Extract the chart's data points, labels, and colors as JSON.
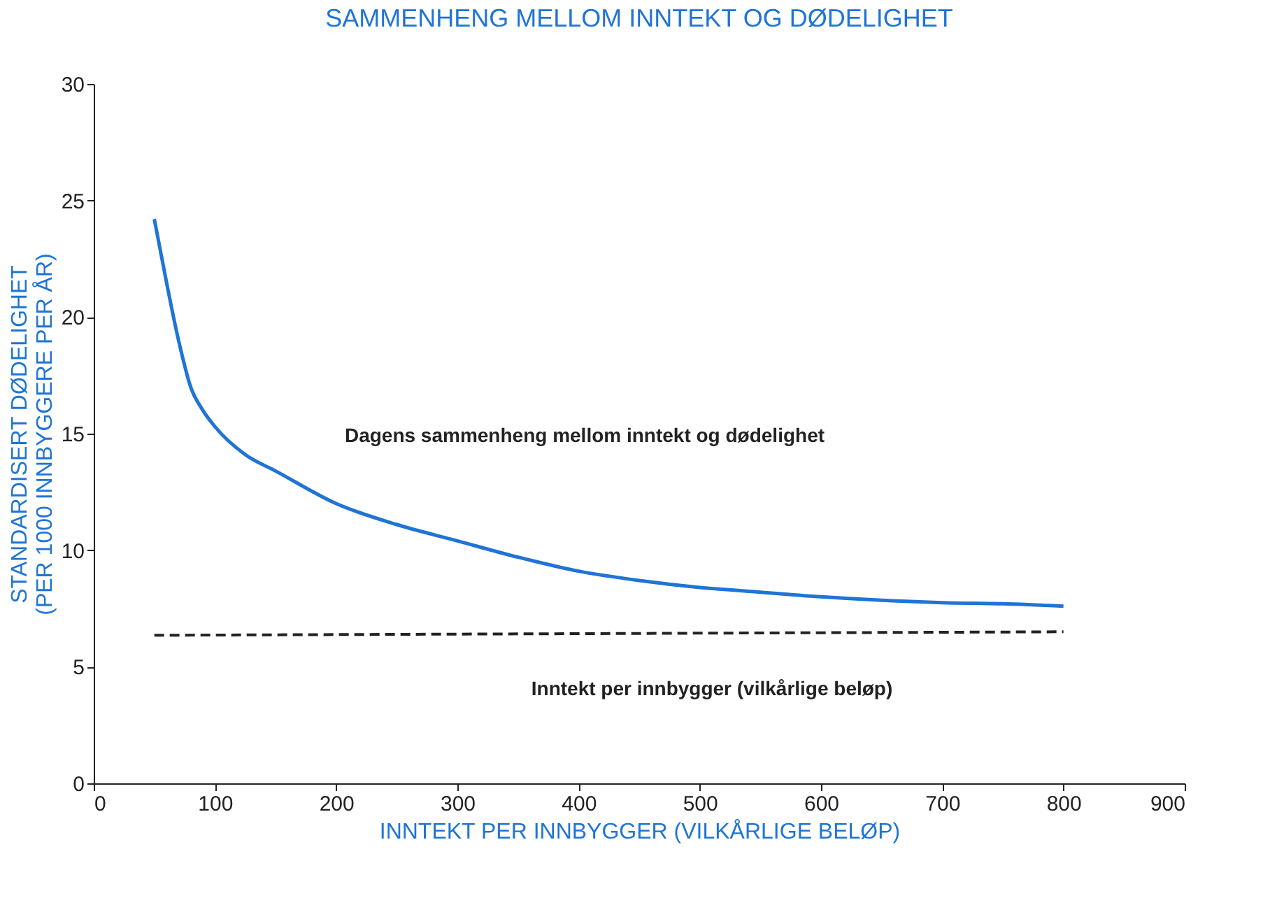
{
  "chart_data": {
    "type": "line",
    "title": "SAMMENHENG MELLOM INNTEKT OG DØDELIGHET",
    "xlabel": "INNTEKT PER INNBYGGER (VILKÅRLIGE BELØP)",
    "ylabel": "STANDARDISERT DØDELIGHET\n(PER 1000 INNBYGGERE PER ÅR)",
    "xlim": [
      0,
      900
    ],
    "xticks": [
      0,
      100,
      200,
      300,
      400,
      500,
      600,
      700,
      800,
      900
    ],
    "ylim": [
      0,
      30
    ],
    "yticks": [
      0,
      5,
      10,
      15,
      20,
      25,
      30
    ],
    "grid": false,
    "series": [
      {
        "color": "#1f74d6",
        "line_style": "solid",
        "x": [
          50,
          60,
          70,
          80,
          90,
          100,
          125,
          150,
          200,
          250,
          300,
          350,
          400,
          450,
          500,
          550,
          600,
          650,
          700,
          750,
          800
        ],
        "values": [
          24.2,
          21.5,
          19,
          17,
          16,
          15.3,
          14.1,
          13.4,
          12,
          11.1,
          10.4,
          9.7,
          9.1,
          8.7,
          8.4,
          8.2,
          8,
          7.85,
          7.75,
          7.7,
          7.6
        ]
      },
      {
        "color": "#222222",
        "line_style": "dashed",
        "x": [
          50,
          800
        ],
        "values": [
          6.35,
          6.5
        ]
      }
    ],
    "annotations": [
      "Dagens sammenheng mellom inntekt og dødelighet",
      "Inntekt per innbygger (vilkårlige beløp)"
    ]
  }
}
